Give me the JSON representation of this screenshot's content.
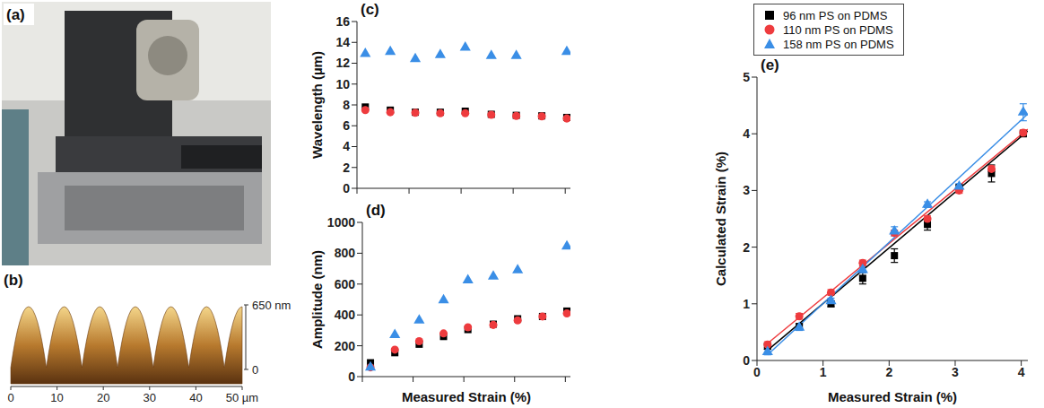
{
  "images": [
    {
      "title": "(a)"
    },
    {
      "title": "(b)",
      "xticks": [
        0,
        10,
        20,
        30,
        40,
        {
          "value": 50,
          "label": "50 µm"
        }
      ],
      "zticks": [
        {
          "value": 650,
          "label": "650 nm"
        },
        0
      ]
    }
  ],
  "chart_data": [
    {
      "type": "scatter",
      "title": "(c)",
      "ylabel": "Wavelength (µm)",
      "xlim": [
        0,
        4.1
      ],
      "xticks": [
        0,
        1,
        2,
        3,
        4
      ],
      "ylim": [
        0,
        16
      ],
      "yticks": [
        0,
        2,
        4,
        6,
        8,
        10,
        12,
        14,
        16
      ],
      "tick_labels": "y",
      "series": [
        {
          "name": "96 nm PS on PDMS",
          "color": "#000000",
          "marker": "square",
          "x": [
            0.16,
            0.64,
            1.12,
            1.6,
            2.08,
            2.58,
            3.06,
            3.55,
            4.03
          ],
          "values": [
            7.8,
            7.5,
            7.3,
            7.3,
            7.4,
            7.1,
            7.0,
            6.95,
            6.8
          ]
        },
        {
          "name": "110 nm PS on PDMS",
          "color": "#ee3b3e",
          "marker": "circle",
          "x": [
            0.16,
            0.64,
            1.12,
            1.6,
            2.08,
            2.58,
            3.06,
            3.55,
            4.03
          ],
          "values": [
            7.5,
            7.3,
            7.25,
            7.2,
            7.2,
            7.05,
            6.95,
            6.9,
            6.7
          ]
        },
        {
          "name": "158 nm PS on PDMS",
          "color": "#3a8ee6",
          "marker": "triangle",
          "x": [
            0.16,
            0.64,
            1.12,
            1.6,
            2.08,
            2.58,
            3.06,
            4.03
          ],
          "values": [
            12.9,
            13.1,
            12.4,
            12.8,
            13.5,
            12.7,
            12.7,
            13.1
          ]
        }
      ]
    },
    {
      "type": "scatter",
      "title": "(d)",
      "xlabel": "Measured Strain (%)",
      "ylabel": "Amplitude (nm)",
      "xlim": [
        0,
        4.1
      ],
      "xticks": [
        0,
        1,
        2,
        3,
        4
      ],
      "ylim": [
        0,
        1000
      ],
      "yticks": [
        0,
        200,
        400,
        600,
        800,
        1000
      ],
      "tick_labels": "y",
      "series": [
        {
          "name": "96 nm PS on PDMS",
          "color": "#000000",
          "marker": "square",
          "x": [
            0.16,
            0.64,
            1.12,
            1.6,
            2.08,
            2.58,
            3.06,
            3.55,
            4.03
          ],
          "values": [
            90,
            155,
            210,
            260,
            305,
            340,
            375,
            390,
            425
          ]
        },
        {
          "name": "110 nm PS on PDMS",
          "color": "#ee3b3e",
          "marker": "circle",
          "x": [
            0.16,
            0.64,
            1.12,
            1.6,
            2.08,
            2.58,
            3.06,
            3.55,
            4.03
          ],
          "values": [
            60,
            175,
            230,
            280,
            320,
            335,
            365,
            390,
            410
          ]
        },
        {
          "name": "158 nm PS on PDMS",
          "color": "#3a8ee6",
          "marker": "triangle",
          "x": [
            0.16,
            0.64,
            1.12,
            1.6,
            2.08,
            2.58,
            3.06,
            4.03
          ],
          "values": [
            60,
            270,
            365,
            495,
            625,
            650,
            690,
            845
          ]
        }
      ]
    },
    {
      "type": "scatter",
      "title": "(e)",
      "xlabel": "Measured Strain (%)",
      "ylabel": "Calculated Strain (%)",
      "xlim": [
        0,
        4.1
      ],
      "xticks": [
        0,
        1,
        2,
        3,
        4
      ],
      "ylim": [
        0,
        5
      ],
      "yticks": [
        0,
        1,
        2,
        3,
        4,
        5
      ],
      "legend": "top",
      "series": [
        {
          "name": "96 nm PS on PDMS",
          "color": "#000000",
          "marker": "square",
          "x": [
            0.16,
            0.64,
            1.12,
            1.6,
            2.08,
            2.58,
            3.06,
            3.55,
            4.03
          ],
          "values": [
            0.25,
            0.6,
            1.0,
            1.45,
            1.85,
            2.4,
            3.05,
            3.3,
            4.0
          ],
          "errors": [
            0.05,
            0.05,
            0.05,
            0.1,
            0.12,
            0.1,
            0.05,
            0.15,
            0.05
          ],
          "fit_x": [
            0.16,
            4.1
          ],
          "fit_values": [
            0.18,
            4.05
          ]
        },
        {
          "name": "110 nm PS on PDMS",
          "color": "#ee3b3e",
          "marker": "circle",
          "x": [
            0.16,
            0.64,
            1.12,
            1.6,
            2.08,
            2.58,
            3.06,
            3.55,
            4.03
          ],
          "values": [
            0.28,
            0.78,
            1.2,
            1.72,
            2.25,
            2.5,
            3.0,
            3.38,
            4.02
          ],
          "errors": [
            0.05,
            0.05,
            0.05,
            0.05,
            0.05,
            0.05,
            0.05,
            0.05,
            0.05
          ],
          "fit_x": [
            0.16,
            4.1
          ],
          "fit_values": [
            0.3,
            4.08
          ]
        },
        {
          "name": "158 nm PS on PDMS",
          "color": "#3a8ee6",
          "marker": "triangle",
          "x": [
            0.16,
            0.64,
            1.12,
            1.6,
            2.08,
            2.58,
            3.06,
            4.03
          ],
          "values": [
            0.15,
            0.58,
            1.05,
            1.6,
            2.28,
            2.75,
            3.07,
            4.38
          ],
          "errors": [
            0.05,
            0.05,
            0.05,
            0.05,
            0.08,
            0.05,
            0.05,
            0.15
          ],
          "fit_x": [
            0.16,
            4.1
          ],
          "fit_values": [
            0.1,
            4.35
          ]
        }
      ]
    }
  ]
}
